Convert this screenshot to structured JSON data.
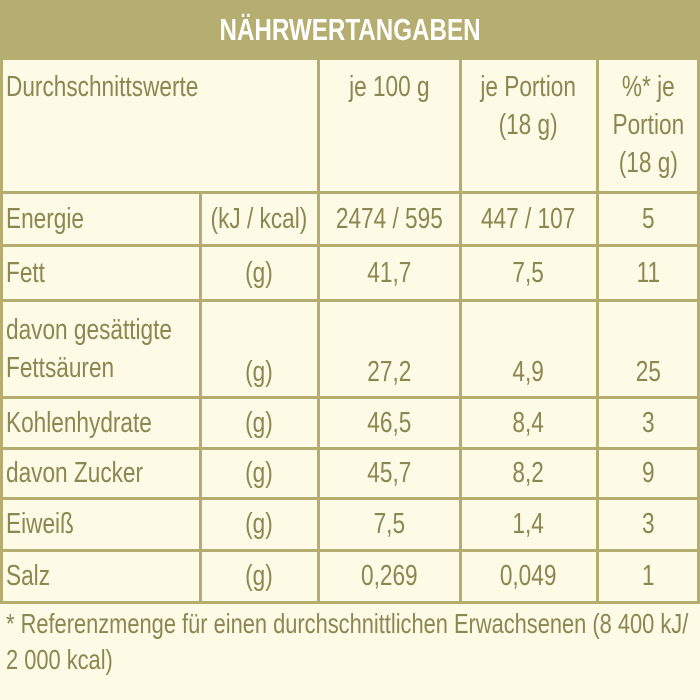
{
  "header": {
    "title": "NÄHRWERTANGABEN"
  },
  "table": {
    "columns": [
      "Durchschnittswerte",
      "je 100 g",
      "je Portion (18 g)",
      "%* je Portion (18 g)"
    ],
    "rows": [
      [
        "Energie",
        "(kJ / kcal)",
        "2474 / 595",
        "447 / 107",
        "5"
      ],
      [
        "Fett",
        "(g)",
        "41,7",
        "7,5",
        "11"
      ],
      [
        "davon gesättigte Fettsäuren",
        "(g)",
        "27,2",
        "4,9",
        "25"
      ],
      [
        "Kohlenhydrate",
        "(g)",
        "46,5",
        "8,4",
        "3"
      ],
      [
        "davon Zucker",
        "(g)",
        "45,7",
        "8,2",
        "9"
      ],
      [
        "Eiweiß",
        "(g)",
        "7,5",
        "1,4",
        "3"
      ],
      [
        "Salz",
        "(g)",
        "0,269",
        "0,049",
        "1"
      ]
    ]
  },
  "footnote": "* Referenzmenge für einen durchschnittlichen Erwachsenen (8 400 kJ/ 2 000 kcal)"
}
